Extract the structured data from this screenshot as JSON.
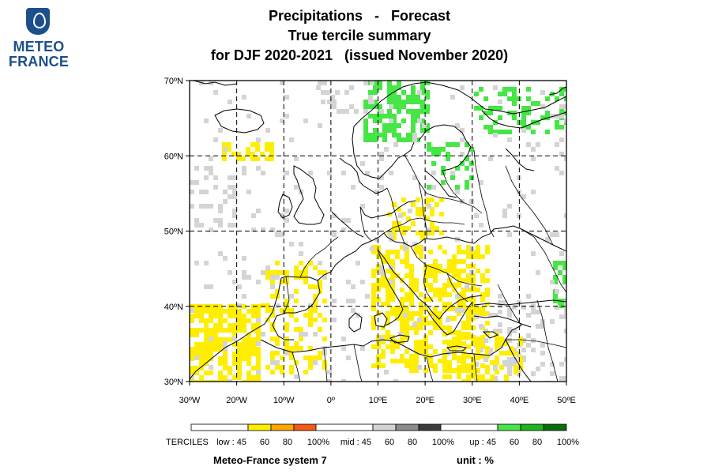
{
  "logo": {
    "line1": "METEO",
    "line2": "FRANCE"
  },
  "title": {
    "line1": "Precipitations   -   Forecast",
    "line2": "True tercile summary",
    "line3": "for DJF 2020-2021   (issued November 2020)"
  },
  "map": {
    "lon_range": [
      -30,
      50
    ],
    "lat_range": [
      30,
      70
    ],
    "lat_ticks": [
      "70ºN",
      "60ºN",
      "50ºN",
      "40ºN",
      "30ºN"
    ],
    "lon_ticks": [
      "30ºW",
      "20ºW",
      "10ºW",
      "0º",
      "10ºE",
      "20ºE",
      "30ºE",
      "40ºE",
      "50ºE"
    ],
    "grid_line_style": "dashed"
  },
  "legend": {
    "title": "TERCILES",
    "groups": [
      {
        "label": "low : 45",
        "ticks": [
          "60",
          "80",
          "100%"
        ],
        "colors": [
          "#ffee00",
          "#ffa500",
          "#f05a14"
        ]
      },
      {
        "label": "mid : 45",
        "ticks": [
          "60",
          "80",
          "100%"
        ],
        "colors": [
          "#d4d4d4",
          "#8c8c8c",
          "#3c3c3c"
        ]
      },
      {
        "label": "up : 45",
        "ticks": [
          "60",
          "80",
          "100%"
        ],
        "colors": [
          "#46e646",
          "#1eb41e",
          "#0a6e0a"
        ]
      }
    ]
  },
  "footer": {
    "system": "Meteo-France system 7",
    "unit": "unit : %"
  }
}
